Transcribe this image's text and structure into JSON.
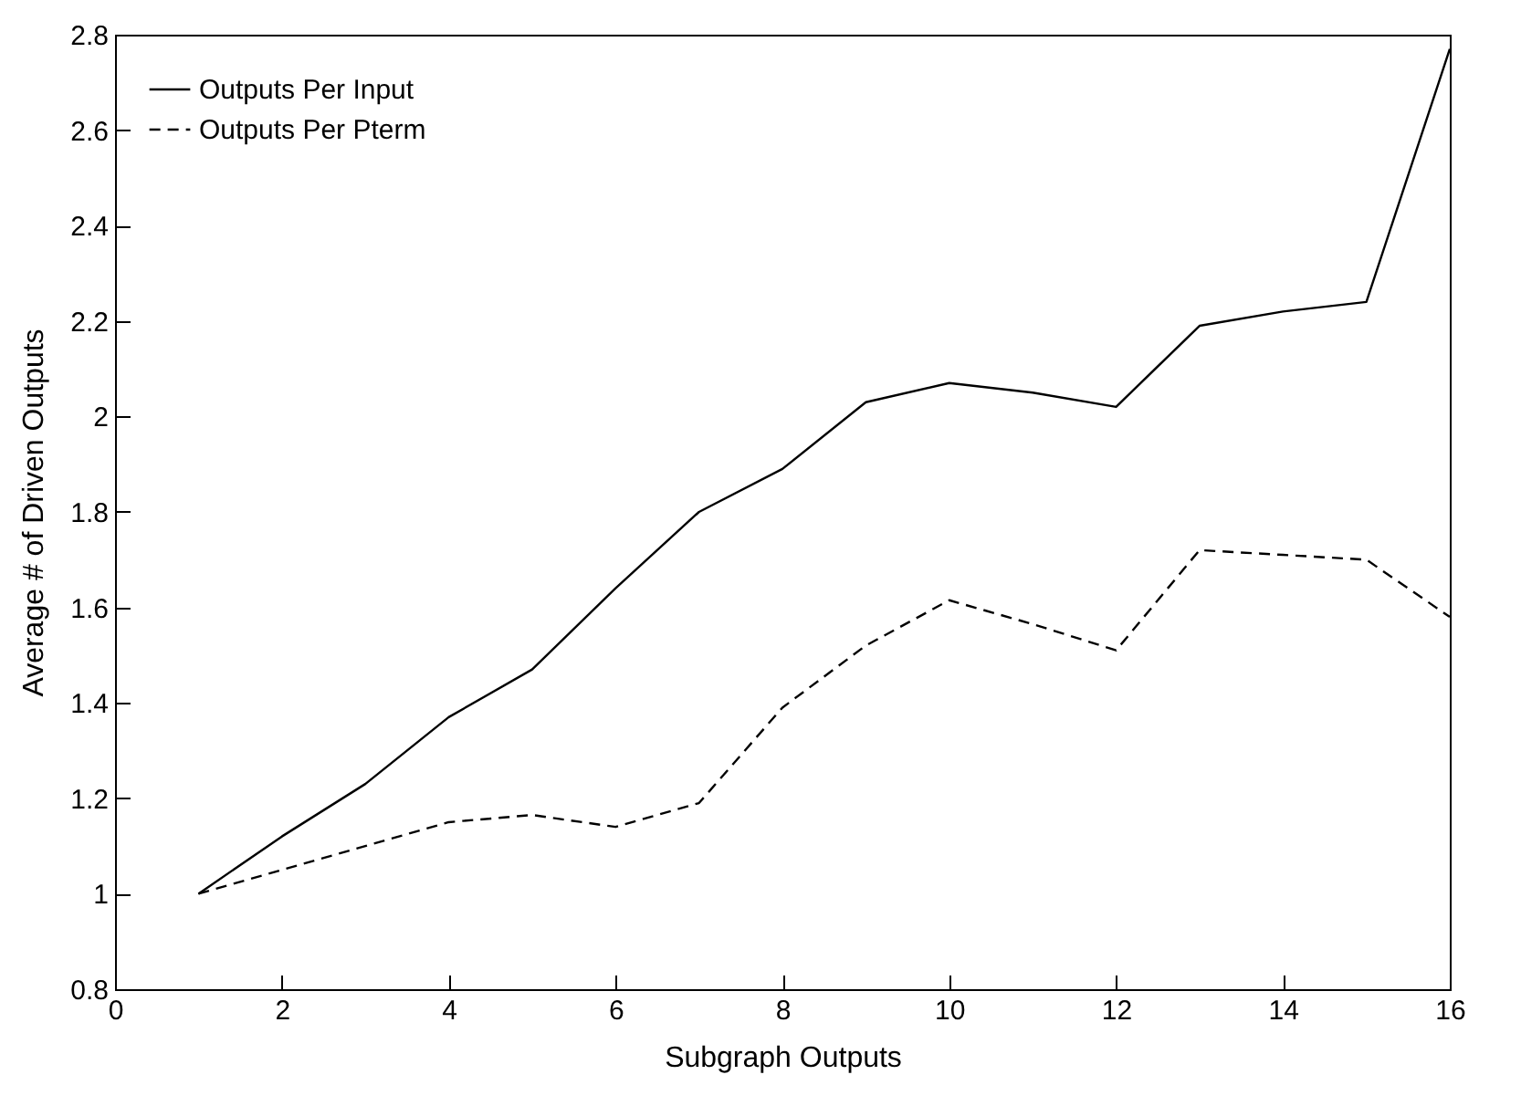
{
  "chart_data": {
    "type": "line",
    "xlabel": "Subgraph Outputs",
    "ylabel": "Average # of Driven Outputs",
    "x": [
      1,
      2,
      3,
      4,
      5,
      6,
      7,
      8,
      9,
      10,
      11,
      12,
      13,
      14,
      15,
      16
    ],
    "series": [
      {
        "name": "Outputs Per Input",
        "color": "#000000",
        "line_style": "solid",
        "values": [
          1.0,
          1.12,
          1.23,
          1.37,
          1.47,
          1.64,
          1.8,
          1.89,
          2.03,
          2.07,
          2.05,
          2.02,
          2.19,
          2.22,
          2.24,
          2.77
        ]
      },
      {
        "name": "Outputs Per Pterm",
        "color": "#000000",
        "line_style": "dashed",
        "values": [
          1.0,
          1.05,
          1.1,
          1.15,
          1.165,
          1.14,
          1.19,
          1.39,
          1.52,
          1.615,
          1.565,
          1.51,
          1.72,
          1.71,
          1.7,
          1.58
        ]
      }
    ],
    "xlim": [
      0,
      16
    ],
    "xticks": [
      0,
      2,
      4,
      6,
      8,
      10,
      12,
      14,
      16
    ],
    "ylim": [
      0.8,
      2.8
    ],
    "yticks": [
      0.8,
      1,
      1.2,
      1.4,
      1.6,
      1.8,
      2,
      2.2,
      2.4,
      2.6,
      2.8
    ],
    "grid": false,
    "legend": "top left",
    "marker": "none"
  }
}
